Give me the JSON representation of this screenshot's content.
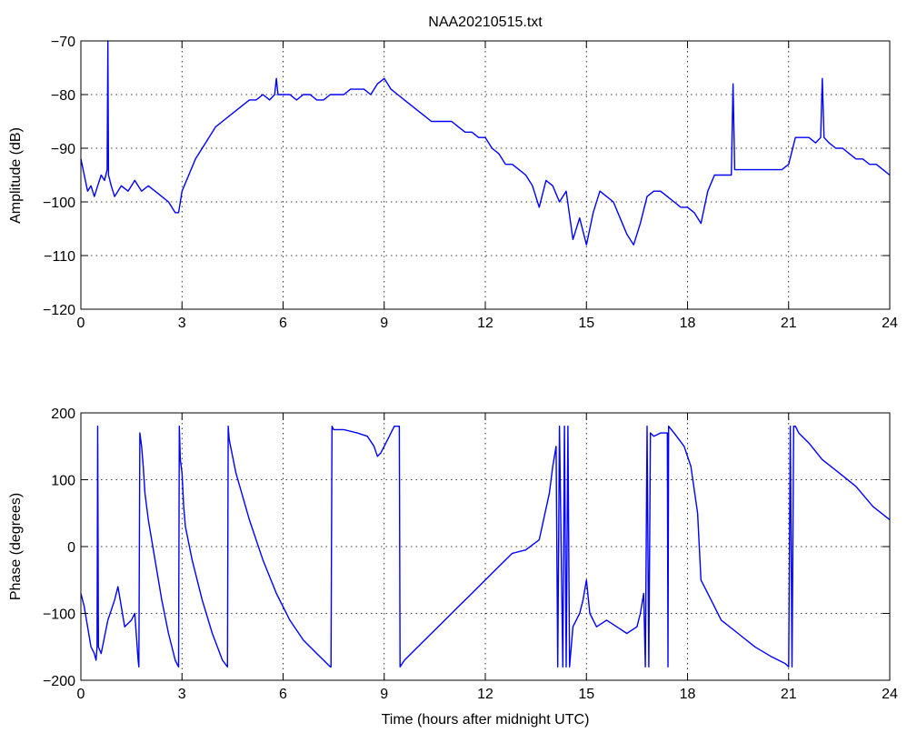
{
  "chart_data": [
    {
      "type": "line",
      "title": "NAA20210515.txt",
      "xlabel": "",
      "ylabel": "Amplitude (dB)",
      "xlim": [
        0,
        24
      ],
      "ylim": [
        -120,
        -70
      ],
      "xticks": [
        0,
        3,
        6,
        9,
        12,
        15,
        18,
        21,
        24
      ],
      "yticks": [
        -120,
        -110,
        -100,
        -90,
        -80,
        -70
      ],
      "xtick_labels": [
        "0",
        "3",
        "6",
        "9",
        "12",
        "15",
        "18",
        "21",
        "24"
      ],
      "ytick_labels": [
        "−120",
        "−110",
        "−100",
        "−90",
        "−80",
        "−70"
      ],
      "grid": true,
      "color": "#0000ff",
      "series": [
        {
          "x": [
            0,
            0.1,
            0.2,
            0.3,
            0.4,
            0.5,
            0.6,
            0.7,
            0.78,
            0.8,
            0.82,
            0.9,
            1.0,
            1.2,
            1.4,
            1.6,
            1.8,
            2.0,
            2.2,
            2.4,
            2.6,
            2.8,
            2.9,
            3.0,
            3.2,
            3.4,
            3.6,
            3.8,
            4.0,
            4.2,
            4.4,
            4.6,
            4.8,
            5.0,
            5.2,
            5.4,
            5.6,
            5.75,
            5.8,
            5.85,
            6.0,
            6.2,
            6.4,
            6.6,
            6.8,
            7.0,
            7.2,
            7.4,
            7.6,
            7.8,
            8.0,
            8.2,
            8.4,
            8.6,
            8.8,
            9.0,
            9.2,
            9.4,
            9.6,
            9.8,
            10.0,
            10.2,
            10.4,
            10.6,
            10.8,
            11.0,
            11.2,
            11.4,
            11.6,
            11.8,
            12.0,
            12.2,
            12.4,
            12.6,
            12.8,
            13.0,
            13.2,
            13.4,
            13.6,
            13.8,
            14.0,
            14.2,
            14.4,
            14.6,
            14.8,
            15.0,
            15.2,
            15.4,
            15.6,
            15.8,
            16.0,
            16.2,
            16.4,
            16.6,
            16.8,
            17.0,
            17.2,
            17.4,
            17.6,
            17.8,
            18.0,
            18.2,
            18.4,
            18.6,
            18.8,
            19.0,
            19.2,
            19.3,
            19.35,
            19.4,
            19.6,
            19.8,
            20.0,
            20.2,
            20.4,
            20.6,
            20.8,
            21.0,
            21.2,
            21.4,
            21.6,
            21.8,
            21.95,
            22.0,
            22.05,
            22.2,
            22.4,
            22.6,
            22.8,
            23.0,
            23.2,
            23.4,
            23.6,
            23.8,
            24.0
          ],
          "y": [
            -92,
            -95,
            -98,
            -97,
            -99,
            -97,
            -95,
            -96,
            -94,
            -70,
            -95,
            -97,
            -99,
            -97,
            -98,
            -96,
            -98,
            -97,
            -98,
            -99,
            -100,
            -102,
            -102,
            -98,
            -95,
            -92,
            -90,
            -88,
            -86,
            -85,
            -84,
            -83,
            -82,
            -81,
            -81,
            -80,
            -81,
            -80,
            -77,
            -80,
            -80,
            -80,
            -81,
            -80,
            -80,
            -81,
            -81,
            -80,
            -80,
            -80,
            -79,
            -79,
            -79,
            -80,
            -78,
            -77,
            -79,
            -80,
            -81,
            -82,
            -83,
            -84,
            -85,
            -85,
            -85,
            -85,
            -86,
            -87,
            -87,
            -88,
            -88,
            -90,
            -91,
            -93,
            -93,
            -94,
            -95,
            -97,
            -101,
            -96,
            -97,
            -100,
            -98,
            -107,
            -103,
            -108,
            -102,
            -98,
            -99,
            -100,
            -103,
            -106,
            -108,
            -104,
            -99,
            -98,
            -98,
            -99,
            -100,
            -101,
            -101,
            -102,
            -104,
            -98,
            -95,
            -95,
            -95,
            -95,
            -78,
            -94,
            -94,
            -94,
            -94,
            -94,
            -94,
            -94,
            -94,
            -93,
            -88,
            -88,
            -88,
            -89,
            -88,
            -77,
            -88,
            -89,
            -90,
            -90,
            -91,
            -92,
            -92,
            -93,
            -93,
            -94,
            -95
          ]
        }
      ]
    },
    {
      "type": "line",
      "title": "",
      "xlabel": "Time (hours after midnight UTC)",
      "ylabel": "Phase (degrees)",
      "xlim": [
        0,
        24
      ],
      "ylim": [
        -200,
        200
      ],
      "xticks": [
        0,
        3,
        6,
        9,
        12,
        15,
        18,
        21,
        24
      ],
      "yticks": [
        -200,
        -100,
        0,
        100,
        200
      ],
      "xtick_labels": [
        "0",
        "3",
        "6",
        "9",
        "12",
        "15",
        "18",
        "21",
        "24"
      ],
      "ytick_labels": [
        "−200",
        "−100",
        "0",
        "100",
        "200"
      ],
      "grid": true,
      "color": "#0000ff",
      "series": [
        {
          "x": [
            0,
            0.1,
            0.2,
            0.3,
            0.4,
            0.45,
            0.48,
            0.5,
            0.52,
            0.6,
            0.8,
            1.0,
            1.1,
            1.2,
            1.3,
            1.5,
            1.6,
            1.7,
            1.72,
            1.75,
            1.8,
            1.85,
            1.9,
            2.0,
            2.2,
            2.4,
            2.6,
            2.8,
            2.9,
            2.92,
            2.95,
            3.0,
            3.05,
            3.1,
            3.3,
            3.6,
            3.9,
            4.2,
            4.35,
            4.37,
            4.4,
            4.6,
            5.0,
            5.4,
            5.8,
            6.2,
            6.6,
            7.0,
            7.4,
            7.42,
            7.45,
            7.5,
            7.8,
            8.2,
            8.5,
            8.7,
            8.8,
            8.9,
            9.1,
            9.3,
            9.45,
            9.47,
            9.6,
            9.8,
            10.0,
            10.4,
            10.8,
            11.2,
            11.6,
            12.0,
            12.4,
            12.8,
            13.2,
            13.6,
            13.9,
            14.0,
            14.1,
            14.15,
            14.2,
            14.3,
            14.35,
            14.4,
            14.45,
            14.5,
            14.6,
            14.8,
            14.9,
            15.0,
            15.1,
            15.3,
            15.6,
            15.9,
            16.2,
            16.5,
            16.6,
            16.7,
            16.75,
            16.8,
            16.85,
            16.9,
            17.0,
            17.2,
            17.4,
            17.42,
            17.44,
            17.6,
            17.9,
            18.1,
            18.3,
            18.4,
            18.5,
            18.7,
            19.0,
            19.5,
            20.0,
            20.5,
            20.9,
            21.0,
            21.05,
            21.1,
            21.15,
            21.2,
            21.3,
            21.6,
            22.0,
            22.5,
            23.0,
            23.5,
            24.0
          ],
          "y": [
            -70,
            -90,
            -120,
            -150,
            -160,
            -170,
            -150,
            180,
            -150,
            -160,
            -110,
            -80,
            -60,
            -90,
            -120,
            -110,
            -100,
            -170,
            -180,
            170,
            150,
            120,
            80,
            40,
            -20,
            -80,
            -130,
            -170,
            -180,
            180,
            130,
            110,
            60,
            30,
            -20,
            -80,
            -130,
            -170,
            -180,
            180,
            160,
            110,
            40,
            -20,
            -70,
            -110,
            -140,
            -160,
            -180,
            -180,
            180,
            175,
            175,
            170,
            165,
            150,
            135,
            140,
            160,
            180,
            180,
            -180,
            -170,
            -160,
            -150,
            -130,
            -110,
            -90,
            -70,
            -50,
            -30,
            -10,
            -5,
            10,
            80,
            120,
            150,
            -180,
            180,
            -180,
            180,
            -180,
            180,
            -180,
            -120,
            -100,
            -80,
            -50,
            -100,
            -120,
            -110,
            -120,
            -130,
            -120,
            -100,
            -70,
            -180,
            180,
            -180,
            170,
            165,
            170,
            170,
            -180,
            180,
            170,
            150,
            120,
            50,
            -50,
            -60,
            -80,
            -110,
            -130,
            -150,
            -165,
            -175,
            -180,
            180,
            -180,
            180,
            180,
            170,
            155,
            130,
            110,
            90,
            60,
            40
          ]
        }
      ]
    }
  ]
}
